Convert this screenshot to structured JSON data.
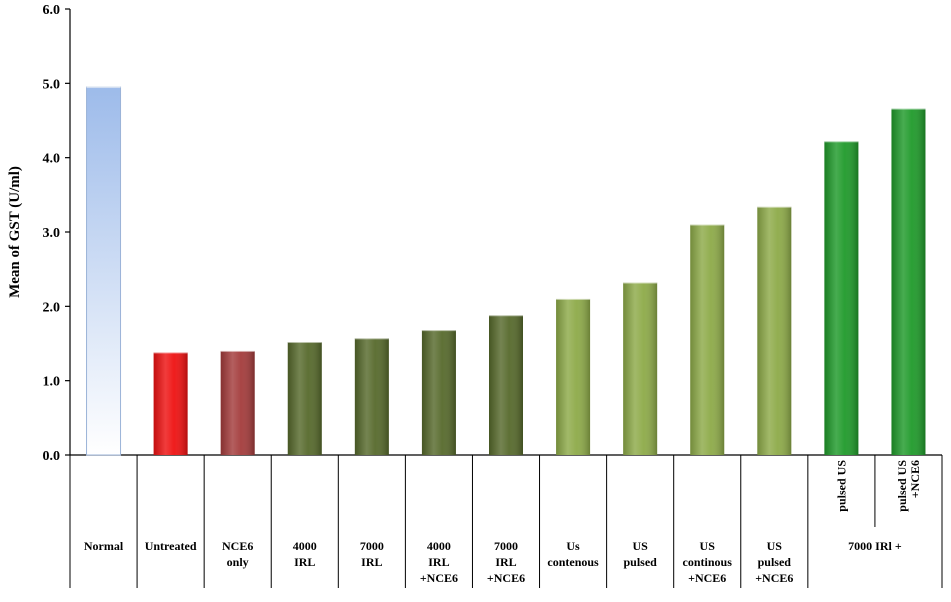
{
  "chart_data": {
    "type": "bar",
    "ylabel": "Mean of GST (U/ml)",
    "ylim": [
      0,
      6
    ],
    "yticks": [
      "0.0",
      "1.0",
      "2.0",
      "3.0",
      "4.0",
      "5.0",
      "6.0"
    ],
    "categories": [
      {
        "lines": [
          "Normal"
        ],
        "value": 4.95,
        "color": "#a9c4ec"
      },
      {
        "lines": [
          "Untreated"
        ],
        "value": 1.38,
        "color": "#ee1111"
      },
      {
        "lines": [
          "NCE6",
          "only"
        ],
        "value": 1.4,
        "color": "#a33b3b"
      },
      {
        "lines": [
          "4000",
          "IRL"
        ],
        "value": 1.52,
        "color": "#56692b"
      },
      {
        "lines": [
          "7000",
          "IRL"
        ],
        "value": 1.57,
        "color": "#56692b"
      },
      {
        "lines": [
          "4000",
          "IRL",
          "+NCE6"
        ],
        "value": 1.68,
        "color": "#56692b"
      },
      {
        "lines": [
          "7000",
          "IRL",
          "+NCE6"
        ],
        "value": 1.88,
        "color": "#56692b"
      },
      {
        "lines": [
          "Us",
          "contenous"
        ],
        "value": 2.1,
        "color": "#8daa48"
      },
      {
        "lines": [
          "US",
          "pulsed"
        ],
        "value": 2.32,
        "color": "#8daa48"
      },
      {
        "lines": [
          "US",
          "continous",
          "+NCE6"
        ],
        "value": 3.1,
        "color": "#8daa48"
      },
      {
        "lines": [
          "US",
          "pulsed",
          "+NCE6"
        ],
        "value": 3.34,
        "color": "#8daa48"
      },
      {
        "lines": [
          "pulsed US"
        ],
        "value": 4.22,
        "color": "#1f9a2a",
        "rotated": true
      },
      {
        "lines": [
          "pulsed US",
          "+NCE6"
        ],
        "value": 4.66,
        "color": "#1f9a2a",
        "rotated": true
      }
    ],
    "group_label": "7000 IRl +"
  }
}
